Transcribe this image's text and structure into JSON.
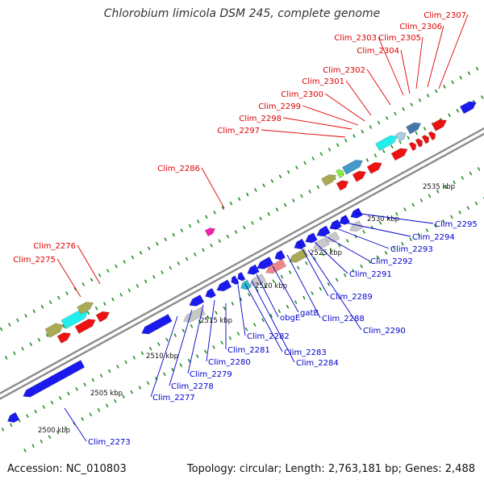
{
  "title": "Chlorobium limicola DSM 245, complete genome",
  "footer": {
    "accession": "Accession: NC_010803",
    "summary": "Topology: circular; Length: 2,763,181 bp; Genes: 2,488"
  },
  "colors": {
    "backbone": "#8c8c8c",
    "tick_dot": "#1e8c1e",
    "forward_label": "#dd0000",
    "reverse_label": "#0000cc",
    "blue_gene": "#1a1aee",
    "red_gene": "#ee1111",
    "cyan_gene": "#22eeee",
    "olive_gene": "#aaaa55",
    "grey_gene": "#c8c8c8",
    "pink_gene": "#ee8888",
    "magenta_gene": "#ee22aa"
  },
  "scale_labels": [
    "2500 kbp",
    "2505 kbp",
    "2510 kbp",
    "2515 kbp",
    "2520 kbp",
    "2525 kbp",
    "2530 kbp",
    "2535 kbp"
  ],
  "forward_genes": [
    "Clim_2275",
    "Clim_2276",
    "Clim_2286",
    "Clim_2297",
    "Clim_2298",
    "Clim_2299",
    "Clim_2300",
    "Clim_2301",
    "Clim_2302",
    "Clim_2303",
    "Clim_2304",
    "Clim_2305",
    "Clim_2306",
    "Clim_2307"
  ],
  "reverse_genes": [
    "Clim_2273",
    "Clim_2277",
    "Clim_2278",
    "Clim_2279",
    "Clim_2280",
    "Clim_2281",
    "Clim_2282",
    "Clim_2283",
    "Clim_2284",
    "obgE",
    "gatB",
    "Clim_2288",
    "Clim_2289",
    "Clim_2290",
    "Clim_2291",
    "Clim_2292",
    "Clim_2293",
    "Clim_2294",
    "Clim_2295"
  ]
}
